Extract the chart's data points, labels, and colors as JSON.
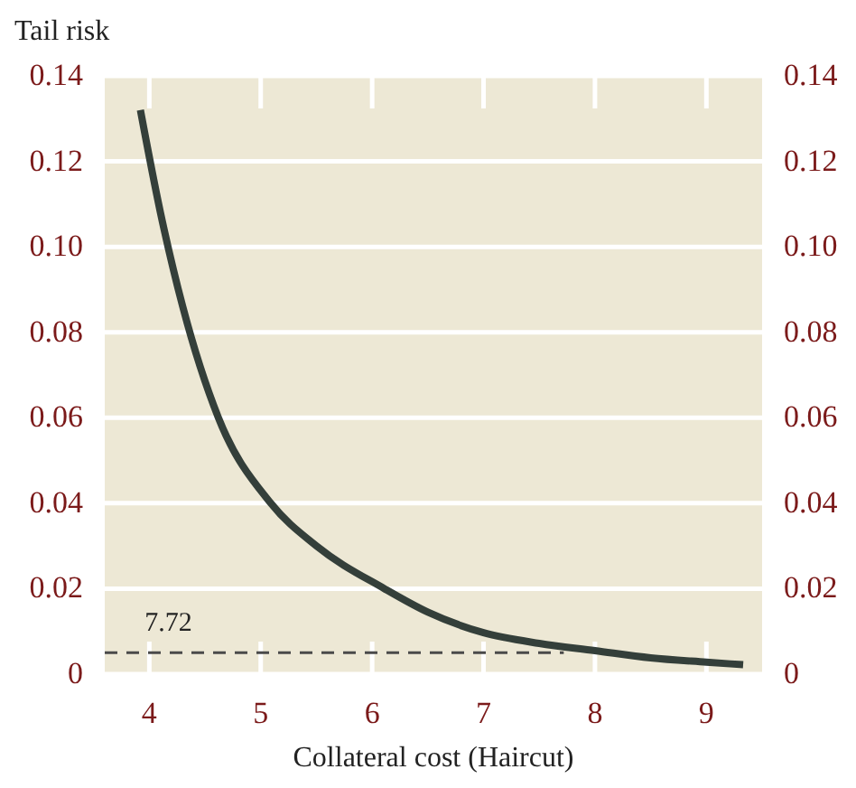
{
  "chart_data": {
    "type": "line",
    "ylabel": "Tail risk",
    "xlabel": "Collateral cost (Haircut)",
    "xlim": [
      3.6,
      9.5
    ],
    "xticks": [
      4,
      5,
      6,
      7,
      8,
      9
    ],
    "ylim": [
      0,
      0.14
    ],
    "yticks": [
      0,
      0.02,
      0.04,
      0.06,
      0.08,
      {
        "value": 0.1,
        "label": "0.10"
      },
      0.12,
      0.14
    ],
    "y2lim": [
      0,
      0.14
    ],
    "y2ticks": [
      0,
      0.02,
      0.04,
      0.06,
      0.08,
      {
        "value": 0.1,
        "label": "0.10"
      },
      0.12,
      0.14
    ],
    "grid": "y",
    "marker": "none",
    "series": [
      {
        "color": "#343f3a",
        "line_style": "solid",
        "x": [
          3.92,
          4.1,
          4.3,
          4.62,
          5.09,
          5.5,
          6.11,
          6.5,
          7,
          7.5,
          8,
          8.5,
          9,
          9.33
        ],
        "values": [
          0.132,
          0.108,
          0.086,
          0.06,
          0.04,
          0.03,
          0.02,
          0.0145,
          0.0097,
          0.0072,
          0.0055,
          0.0038,
          0.0028,
          0.0022
        ]
      },
      {
        "color": "#4a4a4a",
        "line_style": "dashed",
        "x": [
          3.6,
          7.72
        ],
        "values": [
          0.005,
          0.005
        ]
      }
    ],
    "annotations": [
      "7.72"
    ]
  }
}
